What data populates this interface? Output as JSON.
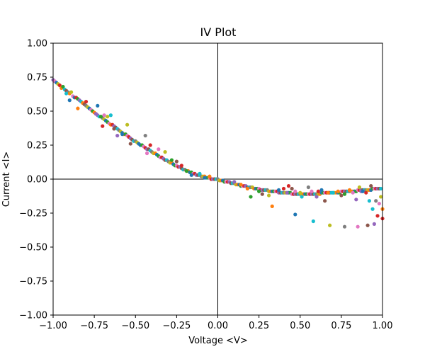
{
  "chart_data": {
    "type": "scatter",
    "title": "IV Plot",
    "xlabel": "Voltage <V>",
    "ylabel": "Current <I>",
    "xlim": [
      -1.0,
      1.0
    ],
    "ylim": [
      -1.0,
      1.0
    ],
    "xticks": [
      "−1.00",
      "−0.75",
      "−0.50",
      "−0.25",
      "0.00",
      "0.25",
      "0.50",
      "0.75",
      "1.00"
    ],
    "yticks": [
      "−1.00",
      "−0.75",
      "−0.50",
      "−0.25",
      "0.00",
      "0.25",
      "0.50",
      "0.75",
      "1.00"
    ],
    "xtick_values": [
      -1.0,
      -0.75,
      -0.5,
      -0.25,
      0.0,
      0.25,
      0.5,
      0.75,
      1.0
    ],
    "ytick_values": [
      -1.0,
      -0.75,
      -0.5,
      -0.25,
      0.0,
      0.25,
      0.5,
      0.75,
      1.0
    ],
    "reference_lines": {
      "x": 0.0,
      "y": 0.0
    },
    "grid": false,
    "legend": "none",
    "palette": [
      "#1f77b4",
      "#ff7f0e",
      "#2ca02c",
      "#d62728",
      "#9467bd",
      "#8c564b",
      "#e377c2",
      "#7f7f7f",
      "#bcbd22",
      "#17becf"
    ],
    "points": [
      [
        -1.0,
        0.73,
        4
      ],
      [
        -0.99,
        0.72,
        6
      ],
      [
        -0.98,
        0.71,
        0
      ],
      [
        -0.97,
        0.7,
        8
      ],
      [
        -0.96,
        0.69,
        3
      ],
      [
        -0.95,
        0.67,
        1
      ],
      [
        -0.94,
        0.68,
        2
      ],
      [
        -0.93,
        0.66,
        9
      ],
      [
        -0.92,
        0.65,
        5
      ],
      [
        -0.91,
        0.64,
        7
      ],
      [
        -0.9,
        0.63,
        1
      ],
      [
        -0.89,
        0.64,
        8
      ],
      [
        -0.88,
        0.61,
        6
      ],
      [
        -0.87,
        0.6,
        0
      ],
      [
        -0.86,
        0.6,
        3
      ],
      [
        -0.85,
        0.59,
        2
      ],
      [
        -0.84,
        0.58,
        4
      ],
      [
        -0.83,
        0.57,
        9
      ],
      [
        -0.82,
        0.56,
        1
      ],
      [
        -0.81,
        0.55,
        5
      ],
      [
        -0.8,
        0.54,
        7
      ],
      [
        -0.79,
        0.53,
        8
      ],
      [
        -0.78,
        0.52,
        0
      ],
      [
        -0.77,
        0.51,
        6
      ],
      [
        -0.76,
        0.5,
        2
      ],
      [
        -0.75,
        0.49,
        1
      ],
      [
        -0.74,
        0.48,
        3
      ],
      [
        -0.73,
        0.47,
        4
      ],
      [
        -0.72,
        0.46,
        9
      ],
      [
        -0.71,
        0.46,
        5
      ],
      [
        -0.7,
        0.45,
        7
      ],
      [
        -0.69,
        0.44,
        8
      ],
      [
        -0.68,
        0.43,
        0
      ],
      [
        -0.67,
        0.42,
        2
      ],
      [
        -0.66,
        0.41,
        6
      ],
      [
        -0.65,
        0.4,
        1
      ],
      [
        -0.64,
        0.4,
        3
      ],
      [
        -0.63,
        0.39,
        4
      ],
      [
        -0.62,
        0.38,
        5
      ],
      [
        -0.61,
        0.37,
        9
      ],
      [
        -0.6,
        0.36,
        7
      ],
      [
        -0.59,
        0.35,
        8
      ],
      [
        -0.58,
        0.34,
        0
      ],
      [
        -0.57,
        0.33,
        1
      ],
      [
        -0.56,
        0.33,
        2
      ],
      [
        -0.55,
        0.32,
        6
      ],
      [
        -0.54,
        0.31,
        3
      ],
      [
        -0.53,
        0.3,
        4
      ],
      [
        -0.52,
        0.29,
        5
      ],
      [
        -0.51,
        0.28,
        9
      ],
      [
        -0.5,
        0.28,
        7
      ],
      [
        -0.49,
        0.27,
        8
      ],
      [
        -0.48,
        0.26,
        1
      ],
      [
        -0.47,
        0.25,
        0
      ],
      [
        -0.46,
        0.25,
        2
      ],
      [
        -0.45,
        0.24,
        6
      ],
      [
        -0.44,
        0.23,
        3
      ],
      [
        -0.43,
        0.22,
        4
      ],
      [
        -0.42,
        0.22,
        5
      ],
      [
        -0.41,
        0.21,
        9
      ],
      [
        -0.4,
        0.2,
        7
      ],
      [
        -0.39,
        0.19,
        8
      ],
      [
        -0.38,
        0.19,
        1
      ],
      [
        -0.37,
        0.18,
        0
      ],
      [
        -0.36,
        0.17,
        2
      ],
      [
        -0.35,
        0.16,
        6
      ],
      [
        -0.34,
        0.16,
        3
      ],
      [
        -0.33,
        0.15,
        4
      ],
      [
        -0.32,
        0.14,
        5
      ],
      [
        -0.31,
        0.14,
        9
      ],
      [
        -0.3,
        0.13,
        7
      ],
      [
        -0.29,
        0.12,
        8
      ],
      [
        -0.28,
        0.12,
        1
      ],
      [
        -0.27,
        0.11,
        0
      ],
      [
        -0.26,
        0.1,
        2
      ],
      [
        -0.25,
        0.1,
        6
      ],
      [
        -0.24,
        0.09,
        3
      ],
      [
        -0.23,
        0.09,
        4
      ],
      [
        -0.22,
        0.08,
        5
      ],
      [
        -0.21,
        0.07,
        9
      ],
      [
        -0.2,
        0.07,
        7
      ],
      [
        -0.19,
        0.06,
        8
      ],
      [
        -0.18,
        0.06,
        1
      ],
      [
        -0.17,
        0.05,
        0
      ],
      [
        -0.16,
        0.05,
        2
      ],
      [
        -0.15,
        0.04,
        6
      ],
      [
        -0.14,
        0.04,
        3
      ],
      [
        -0.13,
        0.03,
        4
      ],
      [
        -0.12,
        0.03,
        5
      ],
      [
        -0.11,
        0.03,
        9
      ],
      [
        -0.1,
        0.02,
        7
      ],
      [
        -0.09,
        0.02,
        8
      ],
      [
        -0.08,
        0.02,
        1
      ],
      [
        -0.07,
        0.01,
        0
      ],
      [
        -0.06,
        0.01,
        2
      ],
      [
        -0.05,
        0.01,
        6
      ],
      [
        -0.04,
        0.0,
        3
      ],
      [
        -0.03,
        0.0,
        4
      ],
      [
        -0.02,
        0.0,
        5
      ],
      [
        -0.01,
        0.0,
        9
      ],
      [
        0.0,
        0.0,
        7
      ],
      [
        0.01,
        -0.01,
        8
      ],
      [
        0.02,
        -0.01,
        1
      ],
      [
        0.03,
        -0.01,
        0
      ],
      [
        0.04,
        -0.02,
        2
      ],
      [
        0.05,
        -0.02,
        6
      ],
      [
        0.06,
        -0.02,
        3
      ],
      [
        0.07,
        -0.02,
        4
      ],
      [
        0.08,
        -0.03,
        5
      ],
      [
        0.09,
        -0.03,
        9
      ],
      [
        0.1,
        -0.03,
        7
      ],
      [
        0.11,
        -0.04,
        8
      ],
      [
        0.12,
        -0.04,
        1
      ],
      [
        0.13,
        -0.04,
        0
      ],
      [
        0.14,
        -0.05,
        2
      ],
      [
        0.15,
        -0.05,
        6
      ],
      [
        0.16,
        -0.05,
        3
      ],
      [
        0.17,
        -0.05,
        4
      ],
      [
        0.18,
        -0.06,
        5
      ],
      [
        0.19,
        -0.06,
        9
      ],
      [
        0.2,
        -0.06,
        7
      ],
      [
        0.21,
        -0.06,
        8
      ],
      [
        0.22,
        -0.07,
        1
      ],
      [
        0.23,
        -0.07,
        0
      ],
      [
        0.24,
        -0.07,
        2
      ],
      [
        0.25,
        -0.07,
        6
      ],
      [
        0.26,
        -0.08,
        3
      ],
      [
        0.27,
        -0.08,
        4
      ],
      [
        0.28,
        -0.08,
        5
      ],
      [
        0.29,
        -0.08,
        9
      ],
      [
        0.3,
        -0.08,
        7
      ],
      [
        0.31,
        -0.09,
        8
      ],
      [
        0.32,
        -0.09,
        1
      ],
      [
        0.33,
        -0.09,
        0
      ],
      [
        0.34,
        -0.09,
        2
      ],
      [
        0.35,
        -0.09,
        6
      ],
      [
        0.36,
        -0.09,
        3
      ],
      [
        0.37,
        -0.1,
        4
      ],
      [
        0.38,
        -0.1,
        5
      ],
      [
        0.39,
        -0.1,
        9
      ],
      [
        0.4,
        -0.1,
        7
      ],
      [
        0.41,
        -0.1,
        8
      ],
      [
        0.42,
        -0.1,
        1
      ],
      [
        0.43,
        -0.1,
        0
      ],
      [
        0.44,
        -0.1,
        2
      ],
      [
        0.45,
        -0.11,
        6
      ],
      [
        0.46,
        -0.11,
        3
      ],
      [
        0.47,
        -0.11,
        4
      ],
      [
        0.48,
        -0.11,
        5
      ],
      [
        0.49,
        -0.11,
        9
      ],
      [
        0.5,
        -0.11,
        7
      ],
      [
        0.51,
        -0.11,
        8
      ],
      [
        0.52,
        -0.11,
        1
      ],
      [
        0.53,
        -0.11,
        0
      ],
      [
        0.54,
        -0.11,
        2
      ],
      [
        0.55,
        -0.11,
        6
      ],
      [
        0.56,
        -0.11,
        3
      ],
      [
        0.57,
        -0.11,
        4
      ],
      [
        0.58,
        -0.11,
        5
      ],
      [
        0.59,
        -0.11,
        9
      ],
      [
        0.6,
        -0.11,
        7
      ],
      [
        0.61,
        -0.11,
        8
      ],
      [
        0.62,
        -0.11,
        1
      ],
      [
        0.63,
        -0.1,
        0
      ],
      [
        0.64,
        -0.1,
        2
      ],
      [
        0.65,
        -0.1,
        6
      ],
      [
        0.66,
        -0.1,
        3
      ],
      [
        0.67,
        -0.1,
        4
      ],
      [
        0.68,
        -0.1,
        5
      ],
      [
        0.69,
        -0.1,
        9
      ],
      [
        0.7,
        -0.1,
        7
      ],
      [
        0.71,
        -0.1,
        8
      ],
      [
        0.72,
        -0.1,
        1
      ],
      [
        0.73,
        -0.1,
        0
      ],
      [
        0.74,
        -0.1,
        2
      ],
      [
        0.75,
        -0.09,
        6
      ],
      [
        0.76,
        -0.09,
        3
      ],
      [
        0.77,
        -0.09,
        4
      ],
      [
        0.78,
        -0.09,
        5
      ],
      [
        0.79,
        -0.09,
        9
      ],
      [
        0.8,
        -0.09,
        7
      ],
      [
        0.81,
        -0.09,
        8
      ],
      [
        0.82,
        -0.09,
        1
      ],
      [
        0.83,
        -0.09,
        0
      ],
      [
        0.84,
        -0.09,
        2
      ],
      [
        0.85,
        -0.08,
        6
      ],
      [
        0.86,
        -0.08,
        3
      ],
      [
        0.87,
        -0.08,
        4
      ],
      [
        0.88,
        -0.08,
        5
      ],
      [
        0.89,
        -0.08,
        9
      ],
      [
        0.9,
        -0.08,
        7
      ],
      [
        0.91,
        -0.08,
        8
      ],
      [
        0.92,
        -0.08,
        1
      ],
      [
        0.93,
        -0.08,
        0
      ],
      [
        0.94,
        -0.07,
        2
      ],
      [
        0.95,
        -0.07,
        6
      ],
      [
        0.96,
        -0.07,
        3
      ],
      [
        0.97,
        -0.07,
        4
      ],
      [
        0.98,
        -0.07,
        5
      ],
      [
        0.99,
        -0.07,
        9
      ],
      [
        -0.92,
        0.63,
        9
      ],
      [
        -0.9,
        0.58,
        0
      ],
      [
        -0.85,
        0.52,
        1
      ],
      [
        -0.8,
        0.57,
        3
      ],
      [
        -0.74,
        0.48,
        4
      ],
      [
        -0.73,
        0.54,
        0
      ],
      [
        -0.71,
        0.46,
        2
      ],
      [
        -0.7,
        0.39,
        3
      ],
      [
        -0.69,
        0.47,
        6
      ],
      [
        -0.67,
        0.46,
        8
      ],
      [
        -0.65,
        0.47,
        9
      ],
      [
        -0.63,
        0.37,
        5
      ],
      [
        -0.61,
        0.32,
        4
      ],
      [
        -0.58,
        0.33,
        0
      ],
      [
        -0.55,
        0.4,
        8
      ],
      [
        -0.53,
        0.26,
        5
      ],
      [
        -0.48,
        0.26,
        0
      ],
      [
        -0.44,
        0.32,
        7
      ],
      [
        -0.43,
        0.19,
        6
      ],
      [
        -0.41,
        0.25,
        3
      ],
      [
        -0.36,
        0.22,
        6
      ],
      [
        -0.32,
        0.2,
        8
      ],
      [
        -0.28,
        0.14,
        2
      ],
      [
        -0.25,
        0.13,
        5
      ],
      [
        -0.22,
        0.1,
        3
      ],
      [
        -0.19,
        0.06,
        2
      ],
      [
        -0.16,
        0.03,
        0
      ],
      [
        -0.11,
        0.04,
        9
      ],
      [
        -0.08,
        0.01,
        0
      ],
      [
        -0.05,
        0.02,
        1
      ],
      [
        0.1,
        -0.02,
        4
      ],
      [
        0.18,
        -0.07,
        1
      ],
      [
        0.2,
        -0.13,
        2
      ],
      [
        0.27,
        -0.11,
        5
      ],
      [
        0.31,
        -0.12,
        8
      ],
      [
        0.33,
        -0.2,
        1
      ],
      [
        0.37,
        -0.08,
        0
      ],
      [
        0.4,
        -0.07,
        3
      ],
      [
        0.42,
        -0.1,
        4
      ],
      [
        0.45,
        -0.07,
        5
      ],
      [
        0.47,
        -0.09,
        6
      ],
      [
        0.5,
        -0.1,
        8
      ],
      [
        0.51,
        -0.13,
        9
      ],
      [
        0.57,
        -0.09,
        6
      ],
      [
        0.58,
        -0.31,
        9
      ],
      [
        0.6,
        -0.13,
        4
      ],
      [
        0.61,
        -0.09,
        3
      ],
      [
        0.63,
        -0.08,
        0
      ],
      [
        0.65,
        -0.16,
        5
      ],
      [
        0.67,
        -0.1,
        1
      ],
      [
        0.68,
        -0.34,
        8
      ],
      [
        0.7,
        -0.1,
        9
      ],
      [
        0.75,
        -0.12,
        5
      ],
      [
        0.77,
        -0.11,
        2
      ],
      [
        0.77,
        -0.35,
        7
      ],
      [
        0.8,
        -0.08,
        1
      ],
      [
        0.82,
        -0.1,
        6
      ],
      [
        0.84,
        -0.15,
        4
      ],
      [
        0.85,
        -0.35,
        6
      ],
      [
        0.87,
        -0.09,
        4
      ],
      [
        0.88,
        -0.09,
        0
      ],
      [
        0.9,
        -0.1,
        3
      ],
      [
        0.91,
        -0.34,
        5
      ],
      [
        0.92,
        -0.16,
        9
      ],
      [
        0.93,
        -0.05,
        5
      ],
      [
        0.94,
        -0.22,
        9
      ],
      [
        0.95,
        -0.33,
        4
      ],
      [
        0.96,
        -0.16,
        7
      ],
      [
        0.97,
        -0.27,
        3
      ],
      [
        0.98,
        -0.18,
        6
      ],
      [
        0.99,
        -0.13,
        8
      ],
      [
        1.0,
        -0.22,
        1
      ],
      [
        1.0,
        -0.29,
        3
      ],
      [
        0.47,
        -0.26,
        0
      ],
      [
        0.43,
        -0.05,
        3
      ],
      [
        0.86,
        -0.06,
        8
      ],
      [
        0.73,
        -0.09,
        1
      ],
      [
        0.55,
        -0.06,
        7
      ],
      [
        0.25,
        -0.09,
        2
      ],
      [
        0.14,
        -0.04,
        1
      ]
    ]
  }
}
